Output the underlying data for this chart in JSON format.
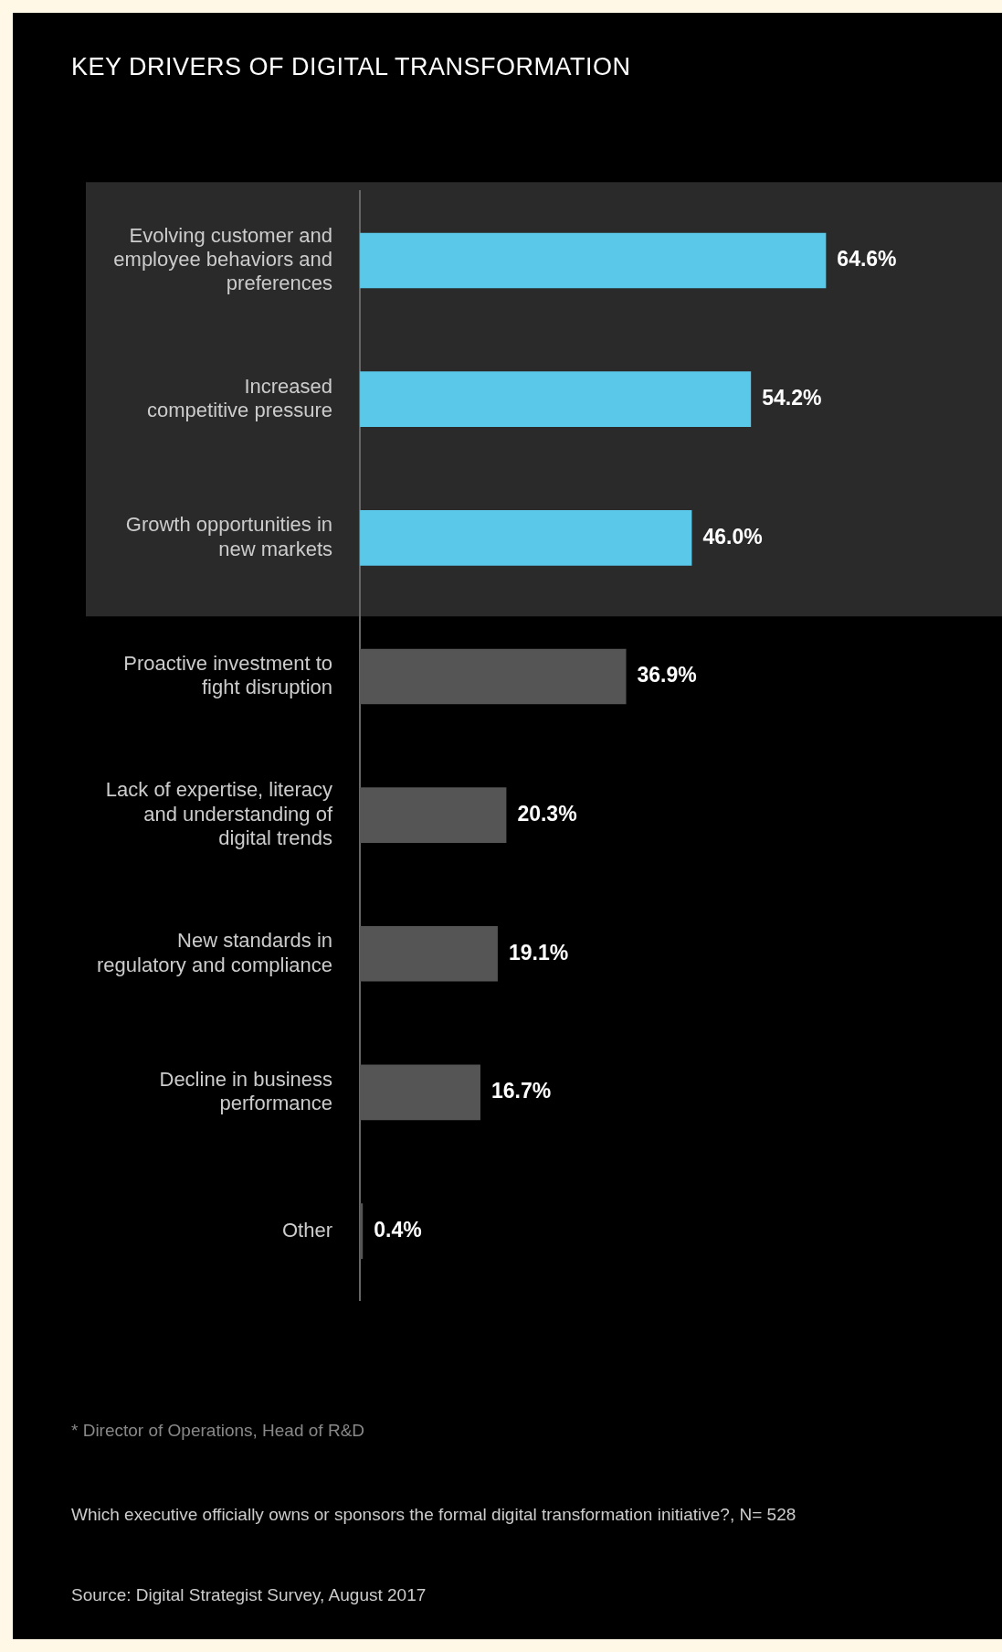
{
  "chart_data": {
    "type": "bar",
    "orientation": "horizontal",
    "title": "KEY DRIVERS OF DIGITAL TRANSFORMATION",
    "categories": [
      "Evolving customer and\nemployee behaviors and\npreferences",
      "Increased\ncompetitive pressure",
      "Growth opportunities in\nnew markets",
      "Proactive investment to\nfight disruption",
      "Lack of expertise, literacy\nand understanding of\ndigital trends",
      "New standards in\nregulatory and compliance",
      "Decline in business\nperformance",
      "Other"
    ],
    "values": [
      64.6,
      54.2,
      46.0,
      36.9,
      20.3,
      19.1,
      16.7,
      0.4
    ],
    "value_labels": [
      "64.6%",
      "54.2%",
      "46.0%",
      "36.9%",
      "20.3%",
      "19.1%",
      "16.7%",
      "0.4%"
    ],
    "colors": [
      "#5ac8e8",
      "#5ac8e8",
      "#5ac8e8",
      "#555555",
      "#555555",
      "#555555",
      "#555555",
      "#555555"
    ],
    "bands": [
      {
        "axis": "y",
        "from": "Evolving customer and\nemployee behaviors and\npreferences",
        "to": "Growth opportunities in\nnew markets",
        "color": "#2a2a2a"
      }
    ],
    "tick_labels": "y",
    "legend": false,
    "annotations": [
      "* Director of Operations, Head of R&D",
      "Which executive officially owns or sponsors the formal digital transformation initiative?, N= 528",
      "Source: Digital Strategist Survey, August 2017"
    ]
  }
}
